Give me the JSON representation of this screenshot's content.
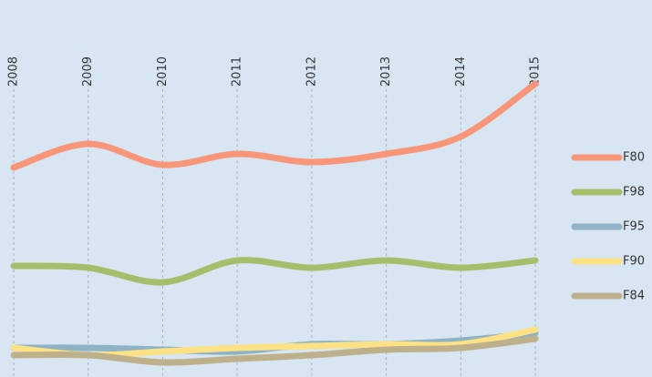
{
  "chart_data": {
    "type": "line",
    "categories": [
      "2008",
      "2009",
      "2010",
      "2011",
      "2012",
      "2013",
      "2014",
      "2015"
    ],
    "ylim": [
      0,
      100
    ],
    "grid": true,
    "legend": "right",
    "series": [
      {
        "name": "F80",
        "color": "#f9967a",
        "values": [
          57.5,
          64,
          58.25,
          61.25,
          59,
          61.25,
          66,
          80.5
        ]
      },
      {
        "name": "F98",
        "color": "#a4bf6b",
        "values": [
          30.5,
          30,
          26,
          32,
          30,
          32,
          30,
          32
        ]
      },
      {
        "name": "F95",
        "color": "#8fb3c5",
        "values": [
          8,
          8,
          7.5,
          7,
          9,
          9,
          10,
          12
        ]
      },
      {
        "name": "F90",
        "color": "#fde285",
        "values": [
          8,
          6,
          7,
          8,
          8.5,
          9,
          9,
          13
        ]
      },
      {
        "name": "F84",
        "color": "#bfb08c",
        "values": [
          6,
          6,
          4,
          5,
          6,
          7.5,
          8,
          10.5
        ]
      }
    ]
  }
}
